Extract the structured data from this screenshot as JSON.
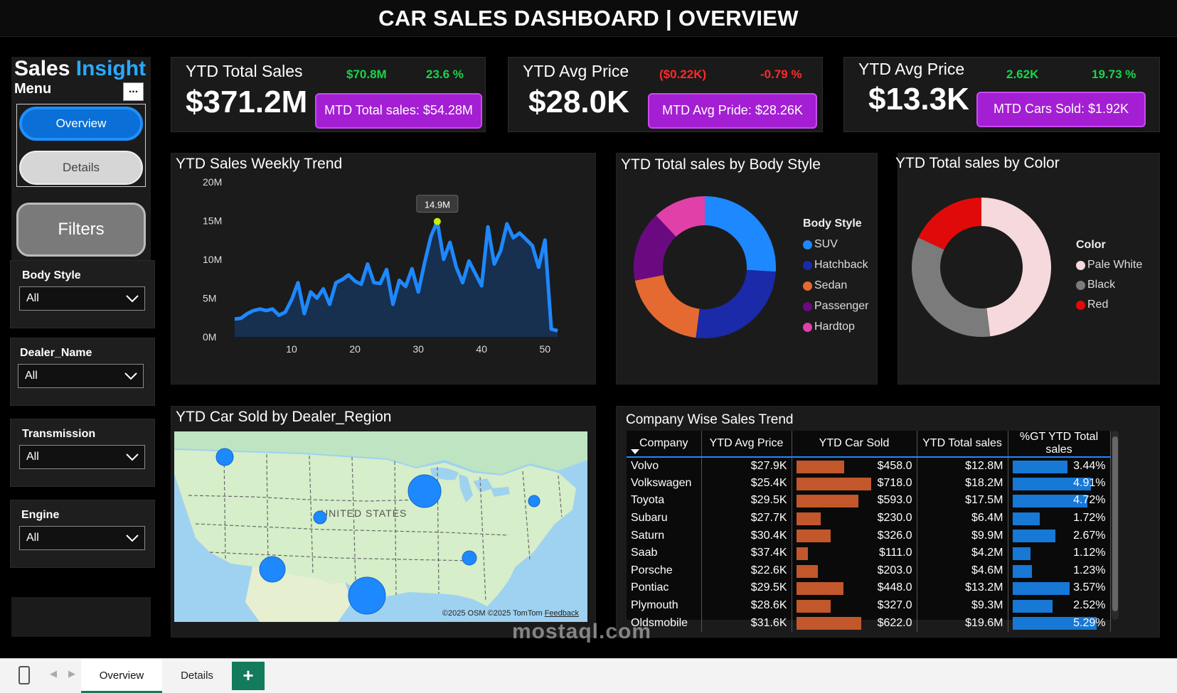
{
  "header": {
    "title": "CAR SALES DASHBOARD |  OVERVIEW"
  },
  "sidebar": {
    "logo_part1": "Sales ",
    "logo_part2": "Insight",
    "menu_label": "Menu",
    "more_label": "...",
    "nav_overview": "Overview",
    "nav_details": "Details",
    "filters_label": "Filters",
    "slicers": [
      {
        "title": "Body Style",
        "value": "All"
      },
      {
        "title": "Dealer_Name",
        "value": "All"
      },
      {
        "title": "Transmission",
        "value": "All"
      },
      {
        "title": "Engine",
        "value": "All"
      }
    ]
  },
  "kpis": [
    {
      "label": "YTD Total Sales",
      "value": "$371.2M",
      "delta1": "$70.8M",
      "delta2": "23.6 %",
      "delta_color": "#19d44a",
      "pill": "MTD Total sales: $54.28M"
    },
    {
      "label": "YTD Avg Price",
      "value": "$28.0K",
      "delta1": "($0.22K)",
      "delta2": "-0.79 %",
      "delta_color": "#ff2a2a",
      "pill": "MTD Avg Pride: $28.26K"
    },
    {
      "label": "YTD Avg Price",
      "value": "$13.3K",
      "delta1": "2.62K",
      "delta2": "19.73 %",
      "delta_color": "#19d44a",
      "pill": "MTD Cars Sold: $1.92K"
    }
  ],
  "weekly_trend": {
    "title": "YTD Sales Weekly Trend",
    "tooltip": "14.9M",
    "colors": {
      "line": "#1e88ff",
      "area": "#17304f",
      "highlight": "#c8f000"
    },
    "chart_data": {
      "type": "area",
      "title": "YTD Sales Weekly Trend",
      "x_ticks": [
        "10",
        "20",
        "30",
        "40",
        "50"
      ],
      "y_ticks": [
        "20M",
        "15M",
        "10M",
        "5M",
        "0M"
      ],
      "xlim": [
        0,
        53
      ],
      "ylim": [
        0,
        20
      ],
      "y_unit": "M",
      "x": [
        1,
        2,
        3,
        4,
        5,
        6,
        7,
        8,
        9,
        10,
        11,
        12,
        13,
        14,
        15,
        16,
        17,
        18,
        19,
        20,
        21,
        22,
        23,
        24,
        25,
        26,
        27,
        28,
        29,
        30,
        31,
        32,
        33,
        34,
        35,
        36,
        37,
        38,
        39,
        40,
        41,
        42,
        43,
        44,
        45,
        46,
        47,
        48,
        49,
        50,
        51,
        52
      ],
      "values": [
        2.3,
        2.4,
        3.0,
        3.4,
        3.6,
        3.4,
        3.6,
        2.8,
        3.2,
        4.8,
        7.0,
        3.0,
        5.8,
        5.0,
        6.2,
        4.2,
        7.0,
        7.4,
        8.0,
        7.2,
        6.8,
        9.4,
        7.0,
        6.9,
        8.7,
        4.2,
        7.3,
        6.5,
        8.8,
        5.8,
        9.6,
        13.0,
        14.9,
        10.0,
        12.2,
        9.0,
        7.0,
        9.8,
        8.2,
        6.6,
        14.2,
        9.4,
        11.1,
        14.6,
        12.8,
        13.4,
        12.6,
        11.8,
        9.0,
        12.5,
        1.0,
        0.8
      ]
    }
  },
  "body_style": {
    "title": "YTD Total sales by Body Style",
    "legend_title": "Body Style",
    "chart_data": {
      "type": "pie",
      "labels": [
        "SUV",
        "Hatchback",
        "Sedan",
        "Passenger",
        "Hardtop"
      ],
      "values": [
        26,
        26,
        20,
        16,
        12
      ],
      "colors": [
        "#1e88ff",
        "#1a2aa8",
        "#e56a32",
        "#6b0a80",
        "#e040a8"
      ]
    }
  },
  "color_sales": {
    "title": "YTD Total sales by Color",
    "legend_title": "Color",
    "chart_data": {
      "type": "pie",
      "labels": [
        "Pale White",
        "Black",
        "Red"
      ],
      "values": [
        48,
        34,
        18
      ],
      "colors": [
        "#f6d9dc",
        "#7b7b7b",
        "#e10a0a"
      ]
    }
  },
  "map": {
    "title": "YTD Car Sold by Dealer_Region",
    "country_label": "UNITED STATES",
    "credit_osm": "©2025 OSM  ©2025 TomTom ",
    "credit_feedback": "Feedback",
    "marker_color": "#1e88ff"
  },
  "company_table": {
    "title": "Company Wise Sales Trend",
    "columns": [
      "Company",
      "YTD Avg Price",
      "YTD Car Sold",
      "YTD Total sales",
      "%GT YTD Total sales"
    ],
    "bar_colors": {
      "car_sold": "#c2572b",
      "pct": "#1778d6"
    },
    "rows": [
      {
        "company": "Volvo",
        "avg_price": "$27.9K",
        "car_sold": "$458.0",
        "car_sold_n": 458,
        "total_sales": "$12.8M",
        "pct": "3.44%",
        "pct_n": 3.44
      },
      {
        "company": "Volkswagen",
        "avg_price": "$25.4K",
        "car_sold": "$718.0",
        "car_sold_n": 718,
        "total_sales": "$18.2M",
        "pct": "4.91%",
        "pct_n": 4.91
      },
      {
        "company": "Toyota",
        "avg_price": "$29.5K",
        "car_sold": "$593.0",
        "car_sold_n": 593,
        "total_sales": "$17.5M",
        "pct": "4.72%",
        "pct_n": 4.72
      },
      {
        "company": "Subaru",
        "avg_price": "$27.7K",
        "car_sold": "$230.0",
        "car_sold_n": 230,
        "total_sales": "$6.4M",
        "pct": "1.72%",
        "pct_n": 1.72
      },
      {
        "company": "Saturn",
        "avg_price": "$30.4K",
        "car_sold": "$326.0",
        "car_sold_n": 326,
        "total_sales": "$9.9M",
        "pct": "2.67%",
        "pct_n": 2.67
      },
      {
        "company": "Saab",
        "avg_price": "$37.4K",
        "car_sold": "$111.0",
        "car_sold_n": 111,
        "total_sales": "$4.2M",
        "pct": "1.12%",
        "pct_n": 1.12
      },
      {
        "company": "Porsche",
        "avg_price": "$22.6K",
        "car_sold": "$203.0",
        "car_sold_n": 203,
        "total_sales": "$4.6M",
        "pct": "1.23%",
        "pct_n": 1.23
      },
      {
        "company": "Pontiac",
        "avg_price": "$29.5K",
        "car_sold": "$448.0",
        "car_sold_n": 448,
        "total_sales": "$13.2M",
        "pct": "3.57%",
        "pct_n": 3.57
      },
      {
        "company": "Plymouth",
        "avg_price": "$28.6K",
        "car_sold": "$327.0",
        "car_sold_n": 327,
        "total_sales": "$9.3M",
        "pct": "2.52%",
        "pct_n": 2.52
      },
      {
        "company": "Oldsmobile",
        "avg_price": "$31.6K",
        "car_sold": "$622.0",
        "car_sold_n": 622,
        "total_sales": "$19.6M",
        "pct": "5.29%",
        "pct_n": 5.29
      }
    ]
  },
  "tabs": {
    "overview": "Overview",
    "details": "Details",
    "add": "+"
  },
  "watermark": "mostaql.com"
}
